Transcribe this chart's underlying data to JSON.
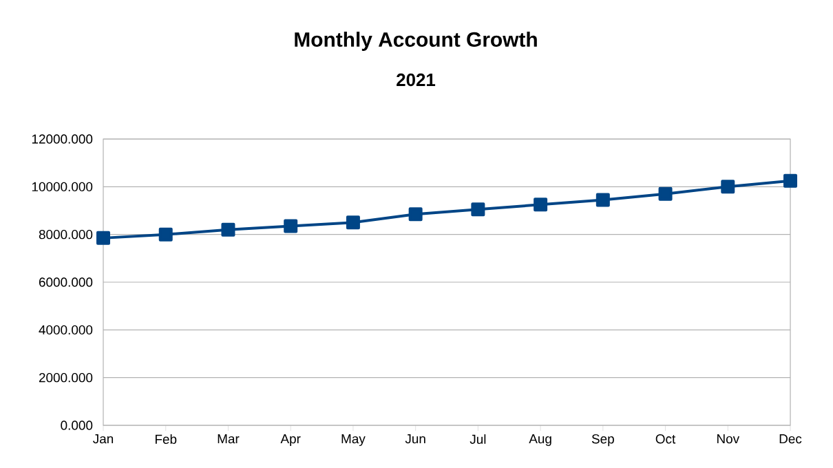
{
  "chart_data": {
    "type": "line",
    "title": "Monthly Account Growth",
    "subtitle": "2021",
    "categories": [
      "Jan",
      "Feb",
      "Mar",
      "Apr",
      "May",
      "Jun",
      "Jul",
      "Aug",
      "Sep",
      "Oct",
      "Nov",
      "Dec"
    ],
    "series": [
      {
        "color": "#004586",
        "values": [
          7850,
          8000,
          8200,
          8350,
          8500,
          8850,
          9050,
          9250,
          9450,
          9700,
          10000,
          10250
        ]
      }
    ],
    "ylim": [
      0,
      12000
    ],
    "yticks": [
      {
        "value": 0,
        "label": "0.000"
      },
      {
        "value": 2000,
        "label": "2000.000"
      },
      {
        "value": 4000,
        "label": "4000.000"
      },
      {
        "value": 6000,
        "label": "6000.000"
      },
      {
        "value": 8000,
        "label": "8000.000"
      },
      {
        "value": 10000,
        "label": "10000.000"
      },
      {
        "value": 12000,
        "label": "12000.000"
      }
    ],
    "grid": "y",
    "marker": "square",
    "line_style": "solid"
  }
}
